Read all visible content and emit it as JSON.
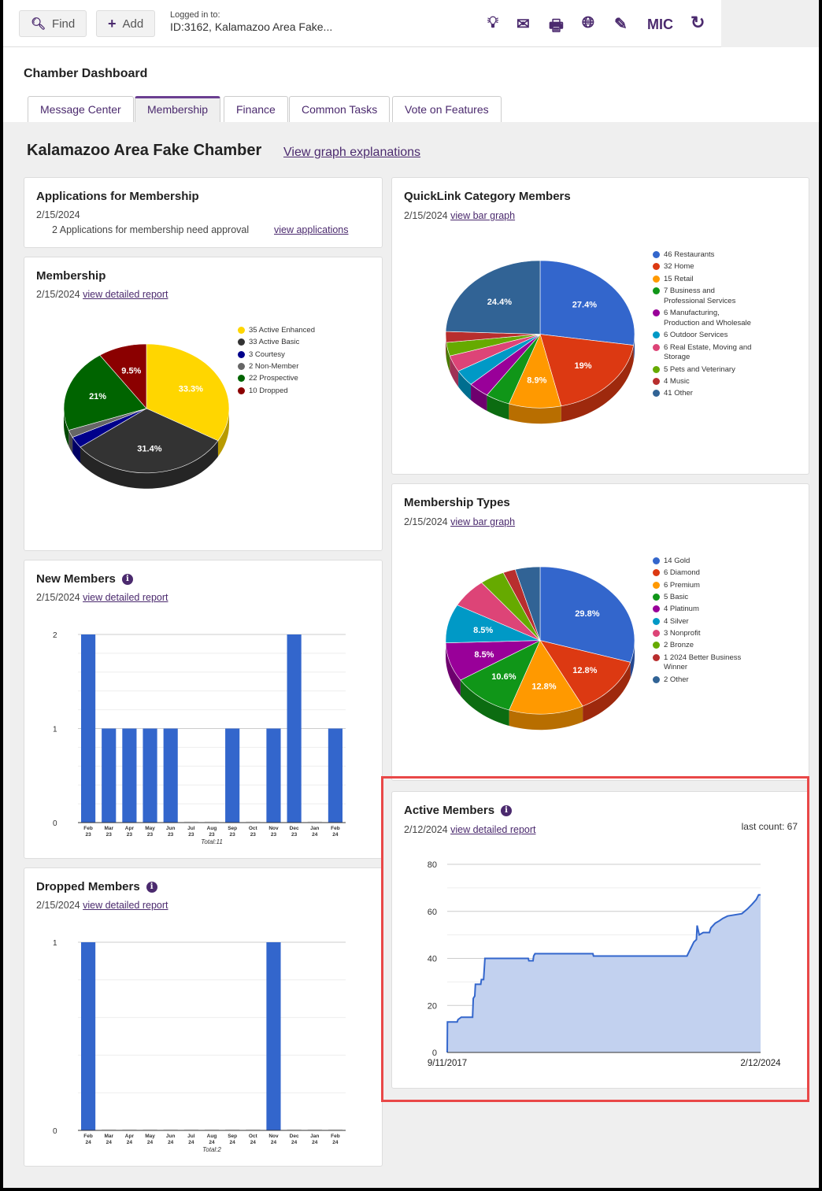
{
  "topbar": {
    "find": "Find",
    "add": "Add",
    "logged_in_label": "Logged in to:",
    "logged_in_value": "ID:3162, Kalamazoo Area Fake...",
    "icons": [
      "lightbulb-icon",
      "mail-icon",
      "print-icon",
      "globe-icon",
      "pencil-icon",
      "refresh-icon"
    ],
    "mic": "MIC"
  },
  "header": {
    "title": "Chamber Dashboard",
    "tabs": [
      "Message Center",
      "Membership",
      "Finance",
      "Common Tasks",
      "Vote on Features"
    ],
    "active_tab": "Membership"
  },
  "page": {
    "chamber": "Kalamazoo Area Fake Chamber",
    "explain_link": "View graph explanations"
  },
  "applications": {
    "title": "Applications for Membership",
    "date": "2/15/2024",
    "text": "2 Applications for membership need approval",
    "link": "view applications"
  },
  "membership": {
    "title": "Membership",
    "date": "2/15/2024",
    "link": "view detailed report"
  },
  "quicklink": {
    "title": "QuickLink Category Members",
    "date": "2/15/2024",
    "link": "view bar graph"
  },
  "types": {
    "title": "Membership Types",
    "date": "2/15/2024",
    "link": "view bar graph"
  },
  "new_members": {
    "title": "New Members",
    "date": "2/15/2024",
    "link": "view detailed report"
  },
  "dropped": {
    "title": "Dropped Members",
    "date": "2/15/2024",
    "link": "view detailed report"
  },
  "active": {
    "title": "Active Members",
    "date": "2/12/2024",
    "link": "view detailed report",
    "last_count": "last count: 67"
  },
  "chart_data": [
    {
      "id": "membership",
      "type": "pie",
      "legend": "right",
      "slices": [
        {
          "label": "35 Active Enhanced",
          "value": 35,
          "color": "#ffd600",
          "pct": "33.3%"
        },
        {
          "label": "33 Active Basic",
          "value": 33,
          "color": "#333333",
          "pct": "31.4%"
        },
        {
          "label": "3 Courtesy",
          "value": 3,
          "color": "#00008b",
          "pct": ""
        },
        {
          "label": "2 Non-Member",
          "value": 2,
          "color": "#666666",
          "pct": ""
        },
        {
          "label": "22 Prospective",
          "value": 22,
          "color": "#006400",
          "pct": "21%"
        },
        {
          "label": "10 Dropped",
          "value": 10,
          "color": "#8b0000",
          "pct": "9.5%"
        }
      ]
    },
    {
      "id": "quicklink",
      "type": "pie",
      "legend": "right",
      "slices": [
        {
          "label": "46 Restaurants",
          "value": 46,
          "color": "#3366cc",
          "pct": "27.4%"
        },
        {
          "label": "32 Home",
          "value": 32,
          "color": "#dc3912",
          "pct": "19%"
        },
        {
          "label": "15 Retail",
          "value": 15,
          "color": "#ff9900",
          "pct": "8.9%"
        },
        {
          "label": "7 Business and Professional Services",
          "value": 7,
          "color": "#109618",
          "pct": ""
        },
        {
          "label": "6 Manufacturing, Production and Wholesale",
          "value": 6,
          "color": "#990099",
          "pct": ""
        },
        {
          "label": "6 Outdoor Services",
          "value": 6,
          "color": "#0099c6",
          "pct": ""
        },
        {
          "label": "6 Real Estate, Moving and Storage",
          "value": 6,
          "color": "#dd4477",
          "pct": ""
        },
        {
          "label": "5 Pets and Veterinary",
          "value": 5,
          "color": "#66aa00",
          "pct": ""
        },
        {
          "label": "4 Music",
          "value": 4,
          "color": "#b82e2e",
          "pct": ""
        },
        {
          "label": "41 Other",
          "value": 41,
          "color": "#316395",
          "pct": "24.4%"
        }
      ]
    },
    {
      "id": "types",
      "type": "pie",
      "legend": "right",
      "slices": [
        {
          "label": "14 Gold",
          "value": 14,
          "color": "#3366cc",
          "pct": "29.8%"
        },
        {
          "label": "6 Diamond",
          "value": 6,
          "color": "#dc3912",
          "pct": "12.8%"
        },
        {
          "label": "6 Premium",
          "value": 6,
          "color": "#ff9900",
          "pct": "12.8%"
        },
        {
          "label": "5 Basic",
          "value": 5,
          "color": "#109618",
          "pct": "10.6%"
        },
        {
          "label": "4 Platinum",
          "value": 4,
          "color": "#990099",
          "pct": "8.5%"
        },
        {
          "label": "4 Silver",
          "value": 4,
          "color": "#0099c6",
          "pct": "8.5%"
        },
        {
          "label": "3 Nonprofit",
          "value": 3,
          "color": "#dd4477",
          "pct": ""
        },
        {
          "label": "2 Bronze",
          "value": 2,
          "color": "#66aa00",
          "pct": ""
        },
        {
          "label": "1 2024 Better Business Winner",
          "value": 1,
          "color": "#b82e2e",
          "pct": ""
        },
        {
          "label": "2 Other",
          "value": 2,
          "color": "#316395",
          "pct": ""
        }
      ]
    },
    {
      "id": "new_members",
      "type": "bar",
      "color": "#3366cc",
      "categories": [
        "Feb\n23",
        "Mar\n23",
        "Apr\n23",
        "May\n23",
        "Jun\n23",
        "Jul\n23",
        "Aug\n23",
        "Sep\n23",
        "Oct\n23",
        "Nov\n23",
        "Dec\n23",
        "Jan\n24",
        "Feb\n24"
      ],
      "values": [
        2,
        1,
        1,
        1,
        1,
        0,
        0,
        1,
        0,
        1,
        2,
        0,
        1
      ],
      "ylim": [
        0,
        2
      ],
      "yticks": [
        0,
        1,
        2
      ],
      "total": "Total:11"
    },
    {
      "id": "dropped",
      "type": "bar",
      "color": "#3366cc",
      "categories": [
        "Feb\n24",
        "Mar\n24",
        "Apr\n24",
        "May\n24",
        "Jun\n24",
        "Jul\n24",
        "Aug\n24",
        "Sep\n24",
        "Oct\n24",
        "Nov\n24",
        "Dec\n24",
        "Jan\n24",
        "Feb\n24"
      ],
      "values": [
        1,
        0,
        0,
        0,
        0,
        0,
        0,
        0,
        0,
        1,
        0,
        0,
        0
      ],
      "ylim": [
        0,
        1
      ],
      "yticks": [
        0,
        1
      ],
      "total": "Total:2"
    },
    {
      "id": "active",
      "type": "area",
      "color": "#3366cc",
      "fill": "#c2d1ef",
      "xlabels": [
        "9/11/2017",
        "2/12/2024"
      ],
      "xrange": [
        "2017-09-11",
        "2024-02-12"
      ],
      "ylim": [
        0,
        80
      ],
      "yticks": [
        0,
        20,
        40,
        60,
        80
      ],
      "points": [
        [
          "2017-09-11",
          0
        ],
        [
          "2017-09-13",
          13
        ],
        [
          "2017-11-25",
          13
        ],
        [
          "2017-12-01",
          14
        ],
        [
          "2017-12-25",
          15
        ],
        [
          "2018-03-20",
          15
        ],
        [
          "2018-03-25",
          23
        ],
        [
          "2018-04-05",
          24
        ],
        [
          "2018-04-10",
          29
        ],
        [
          "2018-05-20",
          29
        ],
        [
          "2018-05-25",
          31
        ],
        [
          "2018-06-10",
          31
        ],
        [
          "2018-06-20",
          40
        ],
        [
          "2019-05-10",
          40
        ],
        [
          "2019-05-15",
          39
        ],
        [
          "2019-06-15",
          39
        ],
        [
          "2019-06-20",
          41
        ],
        [
          "2019-06-30",
          42
        ],
        [
          "2020-09-05",
          42
        ],
        [
          "2020-09-10",
          41
        ],
        [
          "2022-08-10",
          41
        ],
        [
          "2022-09-05",
          44
        ],
        [
          "2022-10-01",
          47
        ],
        [
          "2022-10-20",
          48
        ],
        [
          "2022-10-25",
          54
        ],
        [
          "2022-11-10",
          50
        ],
        [
          "2022-12-10",
          51
        ],
        [
          "2023-01-25",
          51
        ],
        [
          "2023-02-05",
          53
        ],
        [
          "2023-03-10",
          55
        ],
        [
          "2023-04-10",
          56
        ],
        [
          "2023-05-05",
          57
        ],
        [
          "2023-06-10",
          58
        ],
        [
          "2023-09-25",
          59
        ],
        [
          "2023-11-05",
          61
        ],
        [
          "2023-12-10",
          63
        ],
        [
          "2024-01-10",
          65
        ],
        [
          "2024-01-28",
          67
        ],
        [
          "2024-02-12",
          67
        ]
      ]
    }
  ]
}
